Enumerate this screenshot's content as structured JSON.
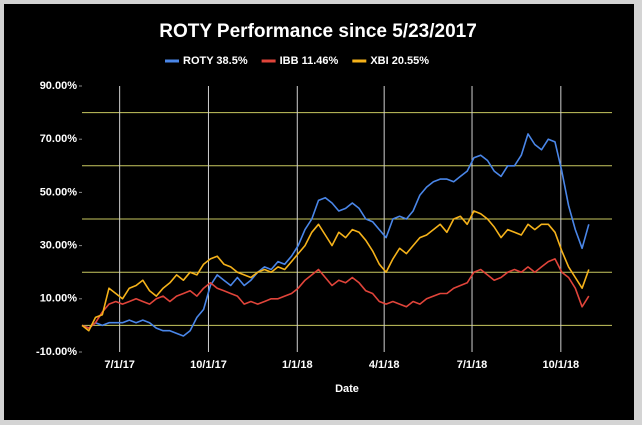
{
  "chart_data": {
    "type": "line",
    "title": "ROTY Performance since 5/23/2017",
    "x_label": "Date",
    "x": [
      "2017-05-23",
      "2017-05-30",
      "2017-06-06",
      "2017-06-13",
      "2017-06-20",
      "2017-06-27",
      "2017-07-04",
      "2017-07-11",
      "2017-07-18",
      "2017-07-25",
      "2017-08-01",
      "2017-08-08",
      "2017-08-15",
      "2017-08-22",
      "2017-08-29",
      "2017-09-05",
      "2017-09-12",
      "2017-09-19",
      "2017-09-26",
      "2017-10-03",
      "2017-10-10",
      "2017-10-17",
      "2017-10-24",
      "2017-10-31",
      "2017-11-07",
      "2017-11-14",
      "2017-11-21",
      "2017-11-28",
      "2017-12-05",
      "2017-12-12",
      "2017-12-19",
      "2017-12-26",
      "2018-01-02",
      "2018-01-09",
      "2018-01-16",
      "2018-01-23",
      "2018-01-30",
      "2018-02-06",
      "2018-02-13",
      "2018-02-20",
      "2018-02-27",
      "2018-03-06",
      "2018-03-13",
      "2018-03-20",
      "2018-03-27",
      "2018-04-03",
      "2018-04-10",
      "2018-04-17",
      "2018-04-24",
      "2018-05-01",
      "2018-05-08",
      "2018-05-15",
      "2018-05-22",
      "2018-05-29",
      "2018-06-05",
      "2018-06-12",
      "2018-06-19",
      "2018-06-26",
      "2018-07-03",
      "2018-07-10",
      "2018-07-17",
      "2018-07-24",
      "2018-07-31",
      "2018-08-07",
      "2018-08-14",
      "2018-08-21",
      "2018-08-28",
      "2018-09-04",
      "2018-09-11",
      "2018-09-18",
      "2018-09-25",
      "2018-10-02",
      "2018-10-09",
      "2018-10-16",
      "2018-10-23",
      "2018-10-30"
    ],
    "series": [
      {
        "name": "ROTY 38.5%",
        "color": "#4a86e8",
        "values": [
          0,
          -1,
          1,
          0,
          1,
          1,
          1,
          2,
          1,
          2,
          1,
          -1,
          -2,
          -2,
          -3,
          -4,
          -2,
          3,
          6,
          15,
          19,
          17,
          15,
          18,
          15,
          17,
          20,
          22,
          21,
          24,
          23,
          26,
          30,
          36,
          40,
          47,
          48,
          46,
          43,
          44,
          46,
          44,
          40,
          39,
          36,
          33,
          40,
          41,
          40,
          43,
          49,
          52,
          54,
          55,
          55,
          54,
          56,
          58,
          63,
          64,
          62,
          58,
          56,
          60,
          60,
          64,
          72,
          68,
          66,
          70,
          69,
          58,
          45,
          36,
          29,
          38
        ]
      },
      {
        "name": "IBB 11.46%",
        "color": "#e0443a",
        "values": [
          0,
          -1,
          1,
          5,
          8,
          9,
          8,
          9,
          10,
          9,
          8,
          10,
          11,
          9,
          11,
          12,
          13,
          11,
          14,
          16,
          14,
          13,
          12,
          11,
          8,
          9,
          8,
          9,
          10,
          10,
          11,
          12,
          14,
          17,
          19,
          21,
          18,
          15,
          17,
          16,
          18,
          16,
          13,
          12,
          9,
          8,
          9,
          8,
          7,
          9,
          8,
          10,
          11,
          12,
          12,
          14,
          15,
          16,
          20,
          21,
          19,
          17,
          18,
          20,
          21,
          20,
          22,
          20,
          22,
          24,
          25,
          20,
          18,
          14,
          7,
          11
        ]
      },
      {
        "name": "XBI 20.55%",
        "color": "#f5b21a",
        "values": [
          0,
          -2,
          3,
          4,
          14,
          12,
          10,
          14,
          15,
          17,
          13,
          11,
          14,
          16,
          19,
          17,
          20,
          19,
          23,
          25,
          26,
          23,
          22,
          20,
          19,
          18,
          20,
          21,
          20,
          22,
          21,
          24,
          27,
          30,
          35,
          38,
          34,
          30,
          35,
          33,
          36,
          35,
          32,
          28,
          23,
          20,
          25,
          29,
          27,
          30,
          33,
          34,
          36,
          38,
          35,
          40,
          41,
          38,
          43,
          42,
          40,
          37,
          33,
          36,
          35,
          34,
          38,
          36,
          38,
          38,
          35,
          28,
          22,
          18,
          14,
          21
        ]
      }
    ],
    "xlim": [
      "2017-05-23",
      "2018-11-23"
    ],
    "xticks": [
      {
        "value": "2017-07-01",
        "label": "7/1/17"
      },
      {
        "value": "2017-10-01",
        "label": "10/1/17"
      },
      {
        "value": "2018-01-01",
        "label": "1/1/18"
      },
      {
        "value": "2018-04-01",
        "label": "4/1/18"
      },
      {
        "value": "2018-07-01",
        "label": "7/1/18"
      },
      {
        "value": "2018-10-01",
        "label": "10/1/18"
      }
    ],
    "ylim": [
      -10,
      90
    ],
    "yticks": [
      {
        "value": -10,
        "label": "-10.00%"
      },
      {
        "value": 10,
        "label": "10.00%"
      },
      {
        "value": 30,
        "label": "30.00%"
      },
      {
        "value": 50,
        "label": "50.00%"
      },
      {
        "value": 70,
        "label": "70.00%"
      },
      {
        "value": 90,
        "label": "90.00%"
      }
    ],
    "grid": true,
    "grid_values": [
      0,
      20,
      40,
      60,
      80
    ],
    "grid_color": "#c8c860",
    "x_grid_color": "#d0d0d0",
    "legend": "top"
  }
}
